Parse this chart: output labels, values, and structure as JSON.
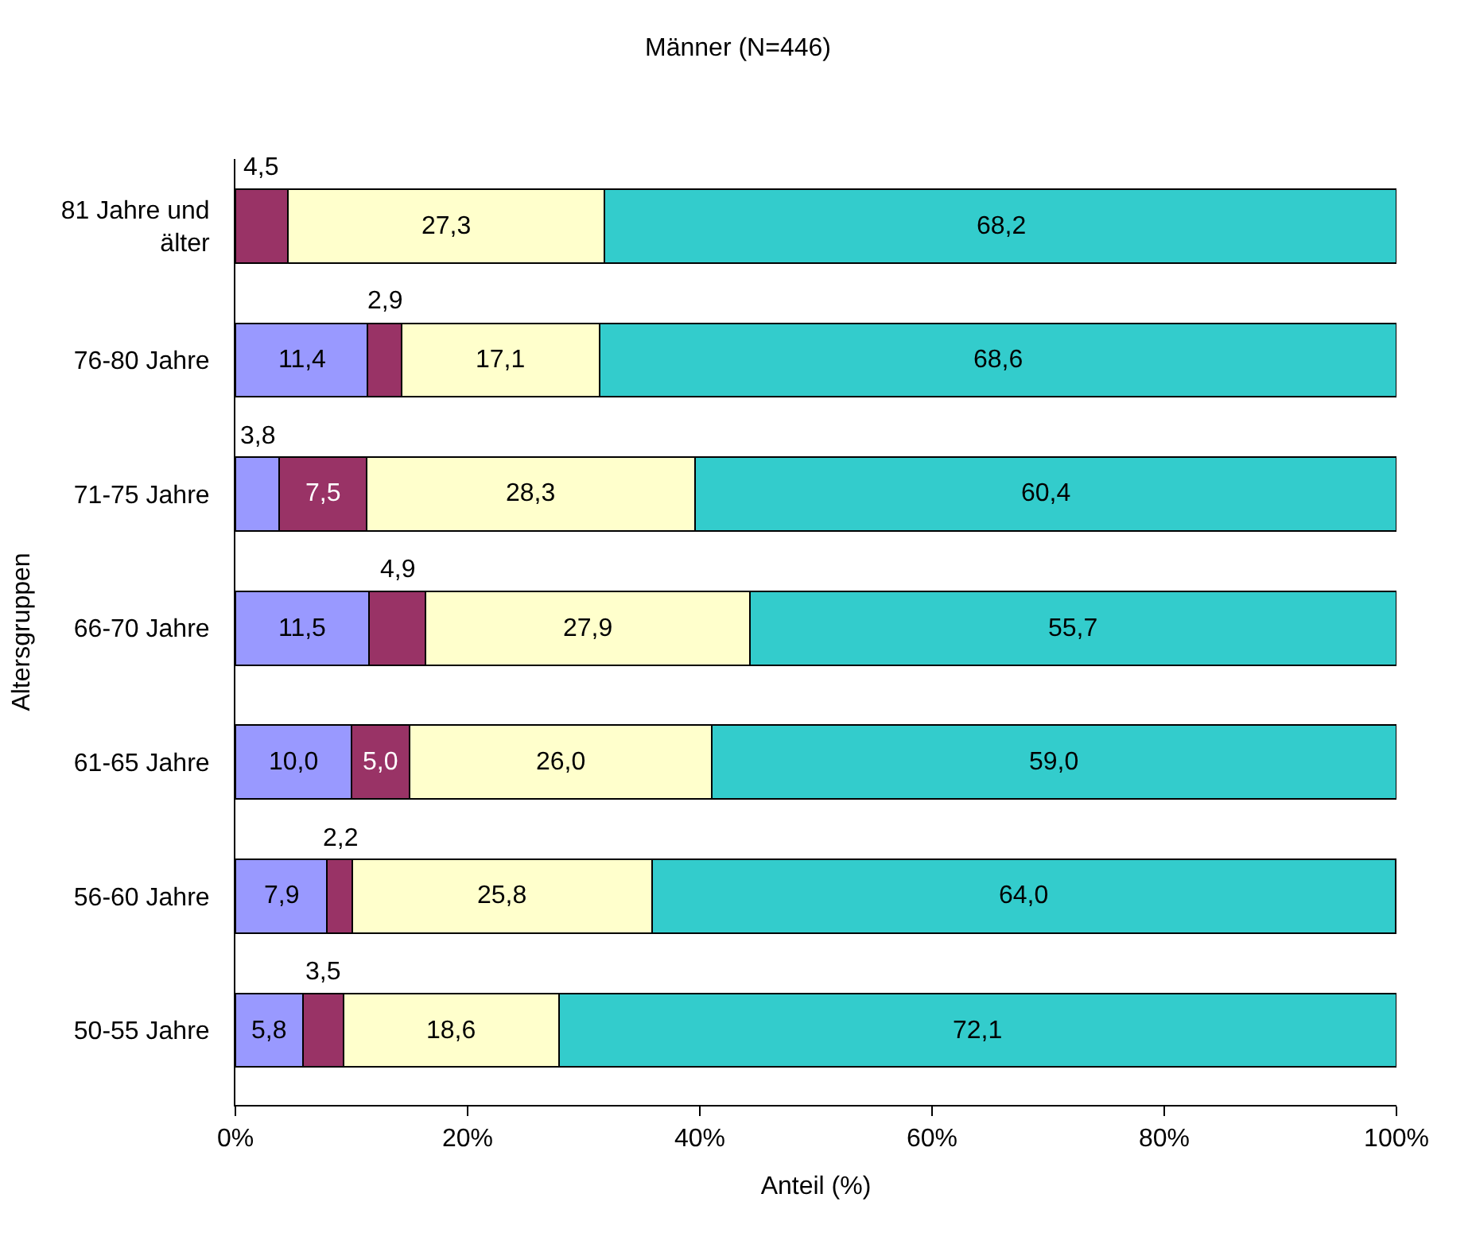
{
  "chart_data": {
    "type": "bar",
    "orientation": "horizontal",
    "stacked": true,
    "title": "Männer (N=446)",
    "xlabel": "Anteil (%)",
    "ylabel": "Altersgruppen",
    "categories": [
      "81 Jahre und älter",
      "76-80 Jahre",
      "71-75 Jahre",
      "66-70 Jahre",
      "61-65 Jahre",
      "56-60 Jahre",
      "50-55 Jahre"
    ],
    "series": [
      {
        "color": "#9999ff",
        "values": [
          null,
          11.4,
          3.8,
          11.5,
          10.0,
          7.9,
          5.8
        ],
        "value_labels": [
          null,
          "11,4",
          "3,8",
          "11,5",
          "10,0",
          "7,9",
          "5,8"
        ]
      },
      {
        "color": "#993366",
        "values": [
          4.5,
          2.9,
          7.5,
          4.9,
          5.0,
          2.2,
          3.5
        ],
        "value_labels": [
          "4,5",
          "2,9",
          "7,5",
          "4,9",
          "5,0",
          "2,2",
          "3,5"
        ]
      },
      {
        "color": "#ffffcc",
        "values": [
          27.3,
          17.1,
          28.3,
          27.9,
          26.0,
          25.8,
          18.6
        ],
        "value_labels": [
          "27,3",
          "17,1",
          "28,3",
          "27,9",
          "26,0",
          "25,8",
          "18,6"
        ]
      },
      {
        "color": "#33cccc",
        "values": [
          68.2,
          68.6,
          60.4,
          55.7,
          59.0,
          64.0,
          72.1
        ],
        "value_labels": [
          "68,2",
          "68,6",
          "60,4",
          "55,7",
          "59,0",
          "64,0",
          "72,1"
        ]
      }
    ],
    "xlim": [
      0,
      100
    ],
    "xticks": [
      {
        "value": 0,
        "label": "0%"
      },
      {
        "value": 20,
        "label": "20%"
      },
      {
        "value": 40,
        "label": "40%"
      },
      {
        "value": 60,
        "label": "60%"
      },
      {
        "value": 80,
        "label": "80%"
      },
      {
        "value": 100,
        "label": "100%"
      }
    ]
  }
}
